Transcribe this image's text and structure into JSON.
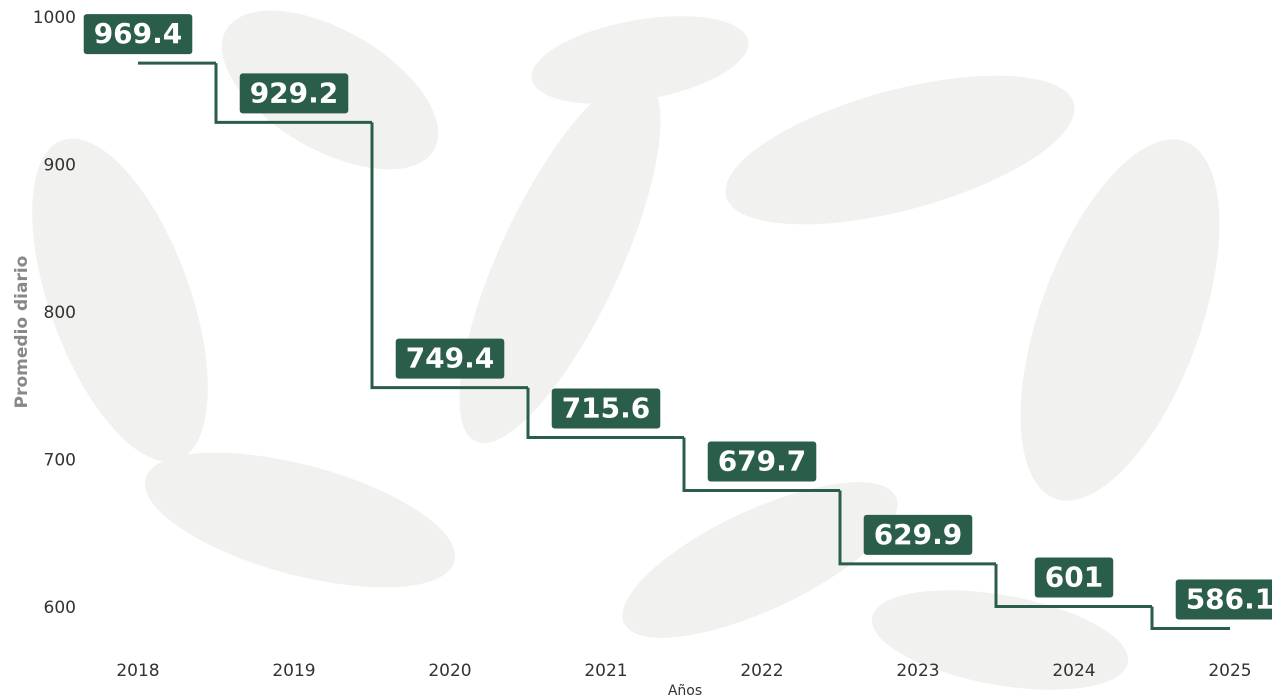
{
  "chart_data": {
    "type": "step",
    "y_label": "Promedio diario",
    "x_label": "Años",
    "categories": [
      "2018",
      "2019",
      "2020",
      "2021",
      "2022",
      "2023",
      "2024",
      "2025"
    ],
    "values": [
      969.4,
      929.2,
      749.4,
      715.6,
      679.7,
      629.9,
      601,
      586.1
    ],
    "color": "#2b5e4a",
    "ylim": [
      575,
      1000
    ],
    "yticks": [
      600,
      700,
      800,
      900,
      1000
    ],
    "grid": false
  }
}
